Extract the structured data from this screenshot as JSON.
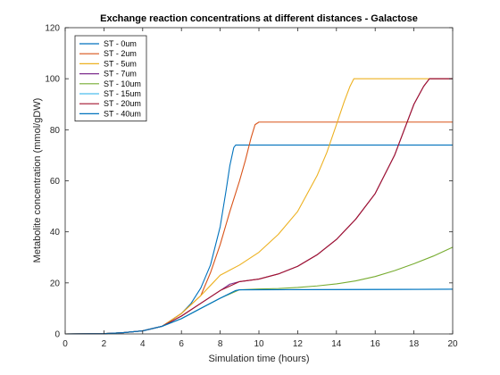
{
  "chart_data": {
    "type": "line",
    "title": "Exchange reaction concentrations at different distances - Galactose",
    "xlabel": "Simulation time (hours)",
    "ylabel": "Metabolite concentration (mmol/gDW)",
    "xlim": [
      0,
      20
    ],
    "ylim": [
      0,
      120
    ],
    "xticks": [
      0,
      2,
      4,
      6,
      8,
      10,
      12,
      14,
      16,
      18,
      20
    ],
    "yticks": [
      0,
      20,
      40,
      60,
      80,
      100,
      120
    ],
    "grid": false,
    "legend_position": "top-left",
    "series": [
      {
        "name": "ST - 0um",
        "color": "#0072BD",
        "x": [
          0,
          2,
          3,
          4,
          5,
          6,
          6.5,
          7,
          7.5,
          8,
          8.3,
          8.5,
          8.7,
          8.8,
          9,
          20
        ],
        "y": [
          0,
          0.1,
          0.5,
          1.2,
          3,
          8,
          12,
          18,
          27,
          42,
          56,
          66,
          73,
          74,
          74,
          74
        ]
      },
      {
        "name": "ST - 2um",
        "color": "#D95319",
        "x": [
          0,
          2,
          3,
          4,
          5,
          6,
          7,
          7.5,
          8,
          8.5,
          9,
          9.3,
          9.6,
          9.8,
          10,
          20
        ],
        "y": [
          0,
          0.1,
          0.5,
          1.2,
          3,
          8,
          15,
          24,
          35,
          48,
          60,
          68,
          77,
          82,
          83,
          83
        ]
      },
      {
        "name": "ST - 5um",
        "color": "#EDB120",
        "x": [
          0,
          2,
          3,
          4,
          5,
          6,
          7,
          7.5,
          8,
          8.5,
          9,
          10,
          11,
          12,
          13,
          13.5,
          14,
          14.4,
          14.7,
          14.9,
          15,
          20
        ],
        "y": [
          0,
          0.1,
          0.5,
          1.2,
          3,
          8,
          15,
          19,
          23,
          25,
          27,
          32,
          39,
          48,
          62,
          71,
          82,
          91,
          97,
          100,
          100,
          100
        ]
      },
      {
        "name": "ST - 7um",
        "color": "#7E2F8E",
        "x": [
          0,
          2,
          3,
          4,
          5,
          6,
          7,
          8,
          8.5,
          9,
          10,
          11,
          12,
          13,
          14,
          15,
          16,
          17,
          17.5,
          18,
          18.5,
          18.8,
          19,
          20
        ],
        "y": [
          0,
          0.1,
          0.5,
          1.2,
          3,
          7,
          12,
          17,
          19.5,
          20.5,
          21.5,
          23.5,
          26.5,
          31,
          37,
          45,
          55,
          70,
          80,
          90,
          97,
          100,
          100,
          100
        ]
      },
      {
        "name": "ST - 10um",
        "color": "#77AC30",
        "x": [
          0,
          2,
          3,
          4,
          5,
          6,
          7,
          8,
          9,
          10,
          11,
          12,
          13,
          14,
          15,
          16,
          17,
          18,
          19,
          20
        ],
        "y": [
          0,
          0.1,
          0.5,
          1.2,
          3,
          6,
          10,
          14,
          17.3,
          17.6,
          17.8,
          18.2,
          18.8,
          19.6,
          20.8,
          22.5,
          24.8,
          27.5,
          30.5,
          34
        ]
      },
      {
        "name": "ST - 15um",
        "color": "#4DBEEE",
        "x": [
          0,
          2,
          3,
          4,
          5,
          6,
          7,
          8,
          8.8,
          9,
          20
        ],
        "y": [
          0,
          0.1,
          0.5,
          1.2,
          3,
          6,
          10,
          14,
          17,
          17.3,
          17.5
        ]
      },
      {
        "name": "ST - 20um",
        "color": "#A2142F",
        "x": [
          0,
          2,
          3,
          4,
          5,
          6,
          7,
          8,
          9,
          10,
          11,
          12,
          13,
          14,
          15,
          16,
          17,
          17.5,
          18,
          18.5,
          18.8,
          19,
          20
        ],
        "y": [
          0,
          0.1,
          0.5,
          1.2,
          3,
          7,
          12,
          17,
          20.5,
          21.5,
          23.5,
          26.5,
          31,
          37,
          45,
          55,
          70,
          80,
          90,
          97,
          100,
          100,
          100
        ]
      },
      {
        "name": "ST - 40um",
        "color": "#0072BD",
        "x": [
          0,
          2,
          3,
          4,
          5,
          6,
          7,
          8,
          8.8,
          9,
          20
        ],
        "y": [
          0,
          0.1,
          0.5,
          1.2,
          3,
          6,
          10,
          14,
          17,
          17.3,
          17.5
        ]
      }
    ]
  }
}
